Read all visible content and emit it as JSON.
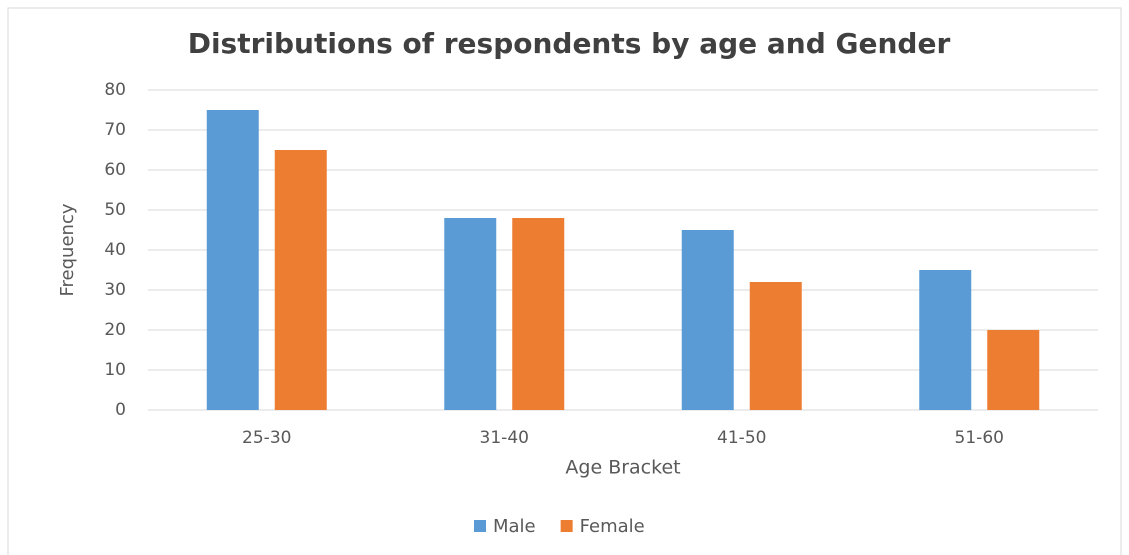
{
  "chart_data": {
    "type": "bar",
    "title": "Distributions of respondents by age and Gender",
    "x_label": "Age Bracket",
    "y_label": "Frequency",
    "categories": [
      "25-30",
      "31-40",
      "41-50",
      "51-60"
    ],
    "series": [
      {
        "name": "Male",
        "color": "#5b9bd5",
        "values": [
          75,
          48,
          45,
          35
        ]
      },
      {
        "name": "Female",
        "color": "#ed7d31",
        "values": [
          65,
          48,
          32,
          20
        ]
      }
    ],
    "ylim": [
      0,
      80
    ],
    "yticks": [
      0,
      10,
      20,
      30,
      40,
      50,
      60,
      70,
      80
    ],
    "grid": true,
    "legend": "bottom"
  }
}
